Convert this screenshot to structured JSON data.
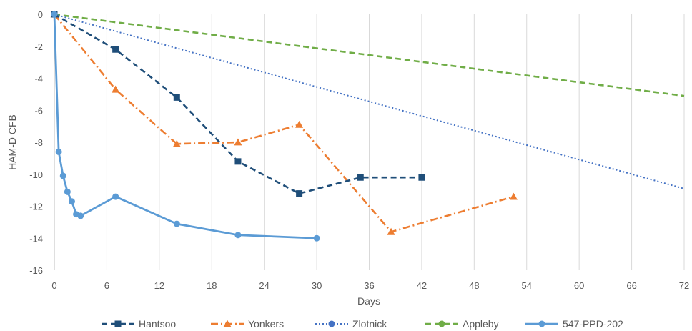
{
  "chart_data": {
    "type": "line",
    "title": "",
    "xlabel": "Days",
    "ylabel": "HAM-D CFB",
    "xlim": [
      0,
      72
    ],
    "ylim": [
      -16,
      0
    ],
    "xticks": [
      0,
      6,
      12,
      18,
      24,
      30,
      36,
      42,
      48,
      54,
      60,
      66,
      72
    ],
    "yticks": [
      0,
      -2,
      -4,
      -6,
      -8,
      -10,
      -12,
      -14,
      -16
    ],
    "grid": "vertical",
    "legend_position": "bottom",
    "series": [
      {
        "name": "Hantsoo",
        "color": "#1f4e79",
        "line_style": "dashed",
        "marker": "square",
        "x": [
          0,
          7,
          14,
          21,
          28,
          35,
          42
        ],
        "y": [
          0,
          -2.2,
          -5.2,
          -9.2,
          -11.2,
          -10.2,
          -10.2
        ]
      },
      {
        "name": "Yonkers",
        "color": "#ed7d31",
        "line_style": "dash-dot",
        "marker": "triangle",
        "x": [
          0,
          7,
          14,
          21,
          28,
          38.5,
          52.5
        ],
        "y": [
          0,
          -4.7,
          -8.1,
          -8.0,
          -6.9,
          -13.6,
          -11.4
        ]
      },
      {
        "name": "Zlotnick",
        "color": "#4472c4",
        "line_style": "dotted",
        "marker": "circle",
        "x": [
          0,
          72
        ],
        "y": [
          0,
          -10.9
        ]
      },
      {
        "name": "Appleby",
        "color": "#70ad47",
        "line_style": "dashed",
        "marker": "circle",
        "x": [
          0,
          72
        ],
        "y": [
          0,
          -5.1
        ]
      },
      {
        "name": "547-PPD-202",
        "color": "#5b9bd5",
        "line_style": "solid",
        "marker": "circle",
        "x": [
          0,
          0.5,
          1,
          1.5,
          2,
          2.5,
          3,
          7,
          14,
          21,
          30
        ],
        "y": [
          0,
          -8.6,
          -10.1,
          -11.1,
          -11.7,
          -12.5,
          -12.6,
          -11.4,
          -13.1,
          -13.8,
          -14.0
        ]
      }
    ]
  }
}
